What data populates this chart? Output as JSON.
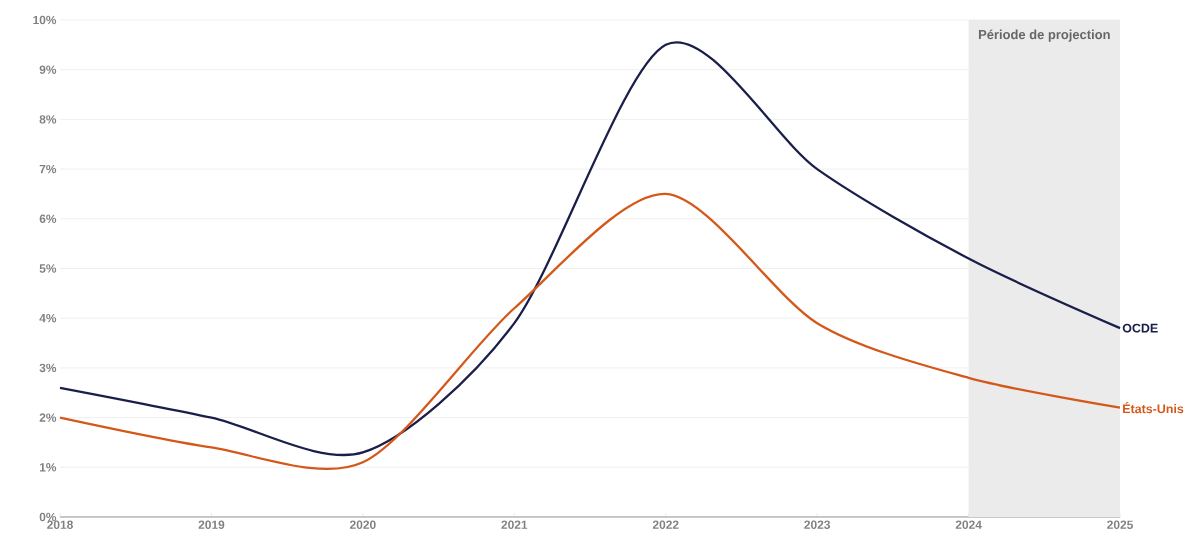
{
  "chart_data": {
    "type": "line",
    "x": [
      2018,
      2019,
      2020,
      2021,
      2022,
      2023,
      2024,
      2025
    ],
    "series": [
      {
        "name": "OCDE",
        "color": "#1a1f4a",
        "values": [
          2.6,
          2.0,
          1.3,
          3.9,
          9.5,
          7.0,
          5.2,
          3.8
        ]
      },
      {
        "name": "États-Unis",
        "color": "#d4581a",
        "values": [
          2.0,
          1.4,
          1.1,
          4.2,
          6.5,
          3.9,
          2.8,
          2.2
        ]
      }
    ],
    "xlim": [
      2018,
      2025
    ],
    "xticks": [
      2018,
      2019,
      2020,
      2021,
      2022,
      2023,
      2024,
      2025
    ],
    "ylim": [
      0,
      10
    ],
    "yticks": [
      {
        "value": 0,
        "label": "0%"
      },
      {
        "value": 1,
        "label": "1%"
      },
      {
        "value": 2,
        "label": "2%"
      },
      {
        "value": 3,
        "label": "3%"
      },
      {
        "value": 4,
        "label": "4%"
      },
      {
        "value": 5,
        "label": "5%"
      },
      {
        "value": 6,
        "label": "6%"
      },
      {
        "value": 7,
        "label": "7%"
      },
      {
        "value": 8,
        "label": "8%"
      },
      {
        "value": 9,
        "label": "9%"
      },
      {
        "value": 10,
        "label": "10%"
      }
    ],
    "grid": "y",
    "bands": [
      {
        "axis": "x",
        "from": 2024,
        "to": 2025,
        "label": "Période de projection",
        "color": "#ebebeb"
      }
    ]
  }
}
